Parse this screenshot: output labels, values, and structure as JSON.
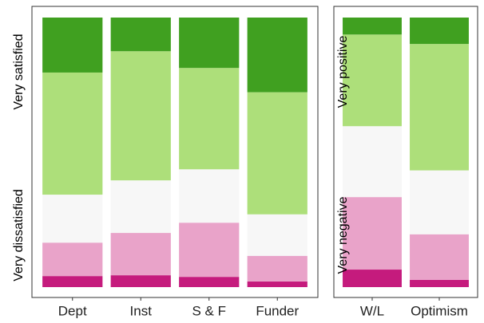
{
  "chart_data": [
    {
      "type": "bar",
      "stacked": true,
      "categories": [
        "Dept",
        "Inst",
        "S & F",
        "Funder"
      ],
      "annotations": [
        "Very satisfied",
        "Very dissatisfied"
      ],
      "ylim": [
        0,
        100
      ],
      "series": [
        {
          "color": "#c51b7d",
          "values": [
            4.1,
            4.4,
            3.8,
            2.1
          ]
        },
        {
          "color": "#e9a3c9",
          "values": [
            12.4,
            15.7,
            20.1,
            9.5
          ]
        },
        {
          "color": "#f7f7f7",
          "values": [
            17.8,
            19.5,
            19.8,
            15.4
          ]
        },
        {
          "color": "#addf7a",
          "values": [
            45.3,
            47.9,
            37.6,
            45.3
          ]
        },
        {
          "color": "#40a020",
          "values": [
            20.4,
            12.5,
            18.7,
            27.7
          ]
        }
      ]
    },
    {
      "type": "bar",
      "stacked": true,
      "categories": [
        "W/L",
        "Optimism"
      ],
      "annotations": [
        "Very positive",
        "Very negative"
      ],
      "ylim": [
        0,
        100
      ],
      "series": [
        {
          "color": "#c51b7d",
          "values": [
            6.5,
            2.7
          ]
        },
        {
          "color": "#e9a3c9",
          "values": [
            26.9,
            16.9
          ]
        },
        {
          "color": "#f7f7f7",
          "values": [
            26.3,
            23.7
          ]
        },
        {
          "color": "#addf7a",
          "values": [
            34.0,
            46.9
          ]
        },
        {
          "color": "#40a020",
          "values": [
            6.3,
            9.8
          ]
        }
      ]
    }
  ]
}
